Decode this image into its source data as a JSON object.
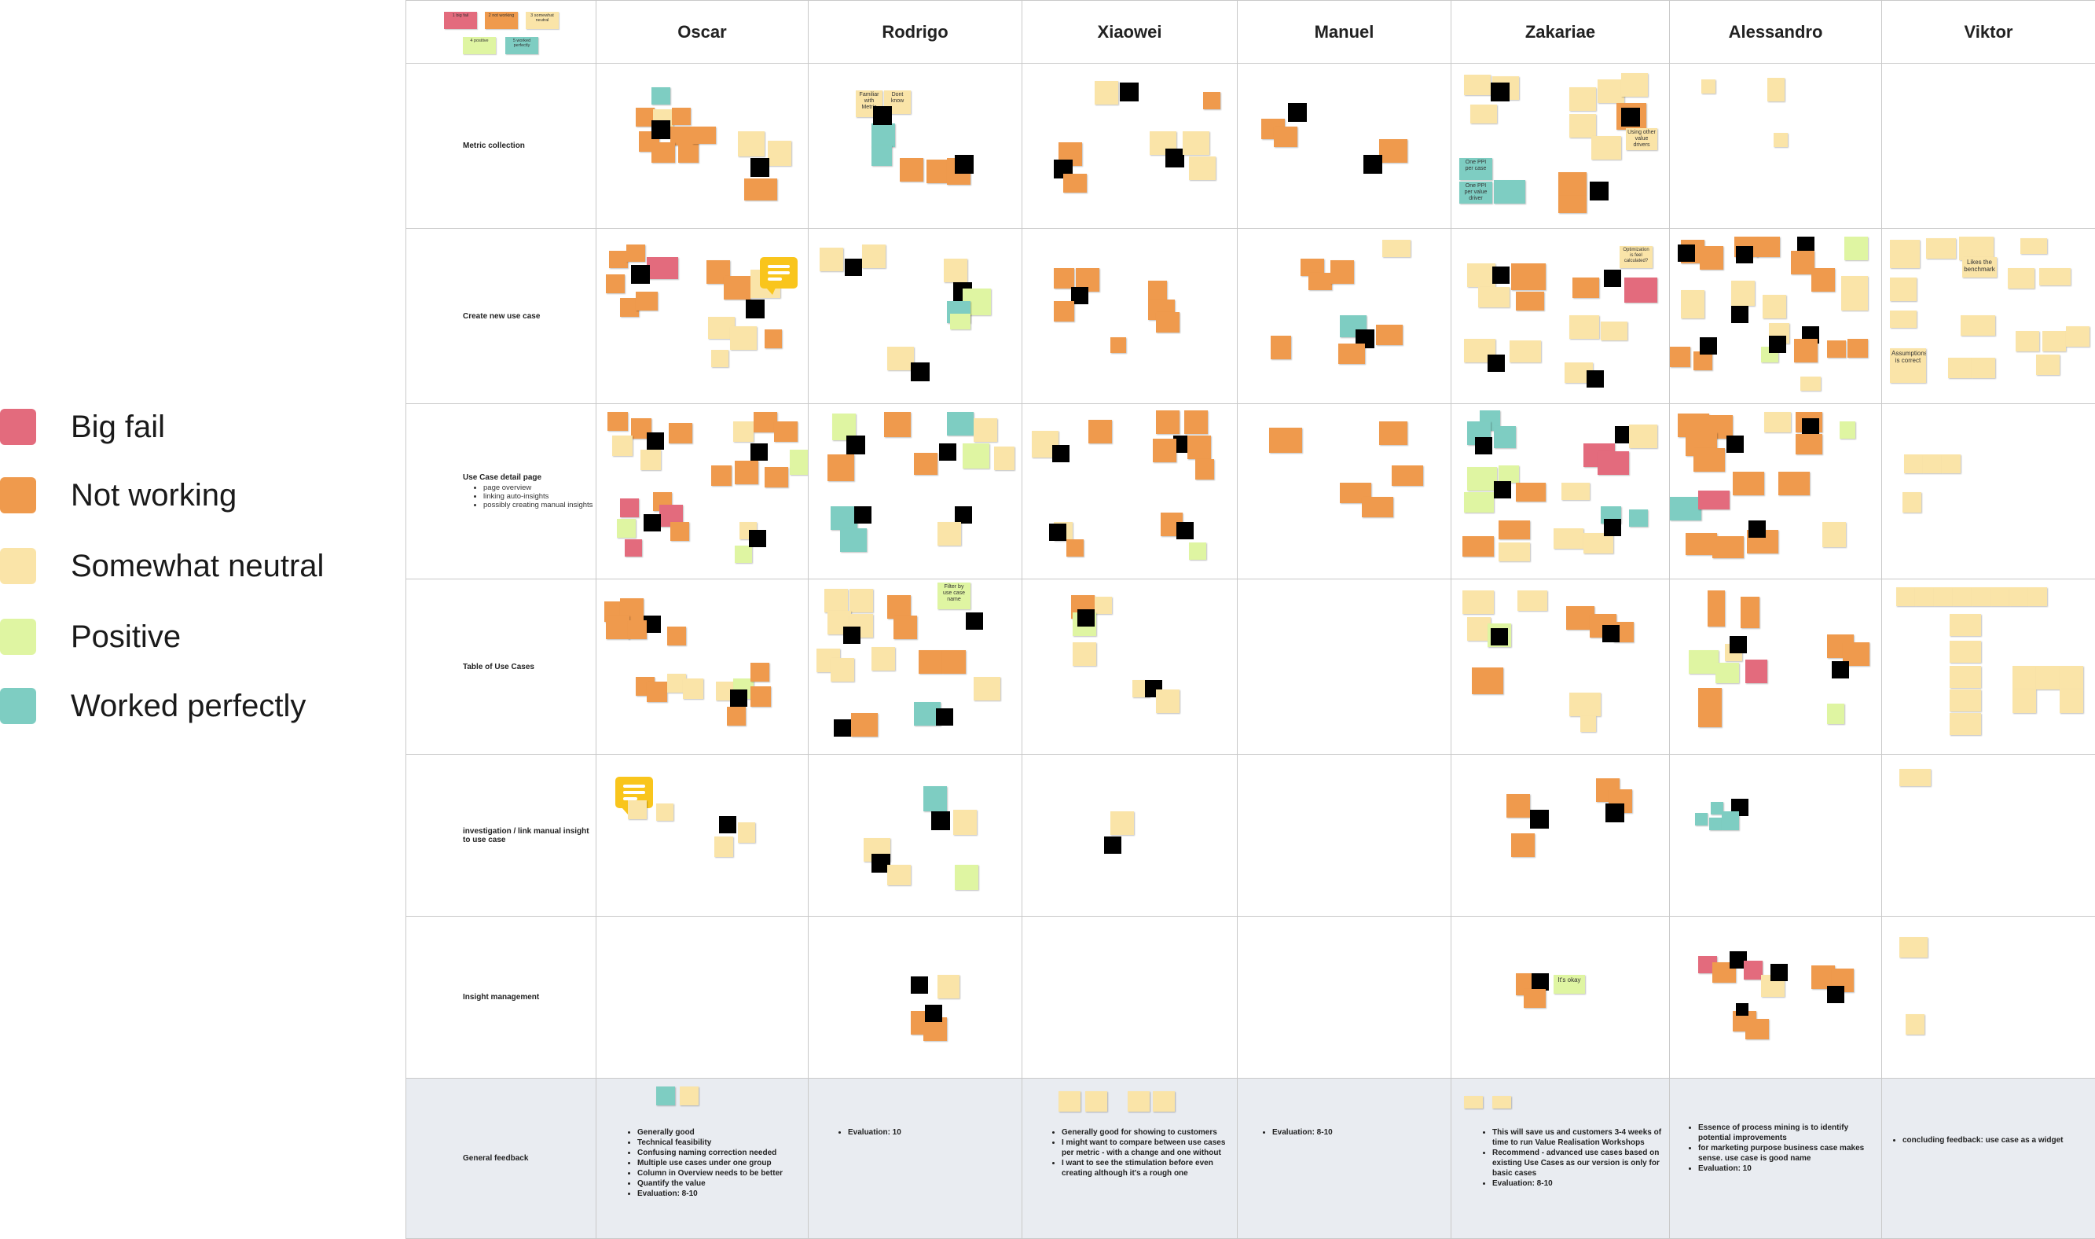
{
  "legend": {
    "items": [
      {
        "label": "Big fail",
        "color": "#e36b7d"
      },
      {
        "label": "Not working",
        "color": "#ef9a4d"
      },
      {
        "label": "Somewhat neutral",
        "color": "#fae4a8"
      },
      {
        "label": "Positive",
        "color": "#dff5a2"
      },
      {
        "label": "Worked perfectly",
        "color": "#7ecdc2"
      }
    ]
  },
  "corner_key": [
    "1 big fail",
    "2 not working",
    "3 somewhat neutral",
    "4 positive",
    "5 worked perfectly"
  ],
  "participants": [
    "Oscar",
    "Rodrigo",
    "Xiaowei",
    "Manuel",
    "Zakariae",
    "Alessandro",
    "Viktor"
  ],
  "rows": [
    {
      "label": "Metric collection",
      "subitems": []
    },
    {
      "label": "Create new use case",
      "subitems": []
    },
    {
      "label": "Use Case detail page",
      "subitems": [
        "page overview",
        "linking auto-insights",
        "possibly creating manual insights"
      ]
    },
    {
      "label": "Table of Use Cases",
      "subitems": []
    },
    {
      "label": "investigation / link manual insight to use case",
      "subitems": []
    },
    {
      "label": "Insight management",
      "subitems": []
    },
    {
      "label": "General feedback",
      "subitems": []
    }
  ],
  "visible_note_text": [
    "Familiar with Metric",
    "Dont know",
    "Likes the benchmark",
    "Assumptions is correct",
    "Filter by use case name",
    "It's okay",
    "One PPI per case",
    "One PPI per value driver",
    "Using other value drivers",
    "Optimization is feel calculated?"
  ],
  "general_feedback": {
    "Oscar": [
      "Generally good",
      "Technical feasibility",
      "Confusing naming correction needed",
      "Multiple use cases under one group",
      "Column in Overview needs to be better",
      "Quantify the value",
      "Evaluation: 8-10"
    ],
    "Rodrigo": [
      "Evaluation: 10"
    ],
    "Xiaowei": [
      "Generally good for showing to customers",
      "I might want to compare between use cases per metric - with a change and one without",
      "I want to see the stimulation before even creating although it's a rough one"
    ],
    "Manuel": [
      "Evaluation: 8-10"
    ],
    "Zakariae": [
      "This will save us and customers 3-4 weeks of time to run Value Realisation Workshops",
      "Recommend - advanced use cases based on existing Use Cases as our version is only for basic cases",
      "Evaluation: 8-10"
    ],
    "Alessandro": [
      "Essence of process mining is to identify potential improvements",
      "for marketing purpose business case makes sense. use case is good name",
      "Evaluation: 10"
    ],
    "Viktor": [
      "concluding feedback: use case as a widget"
    ]
  }
}
